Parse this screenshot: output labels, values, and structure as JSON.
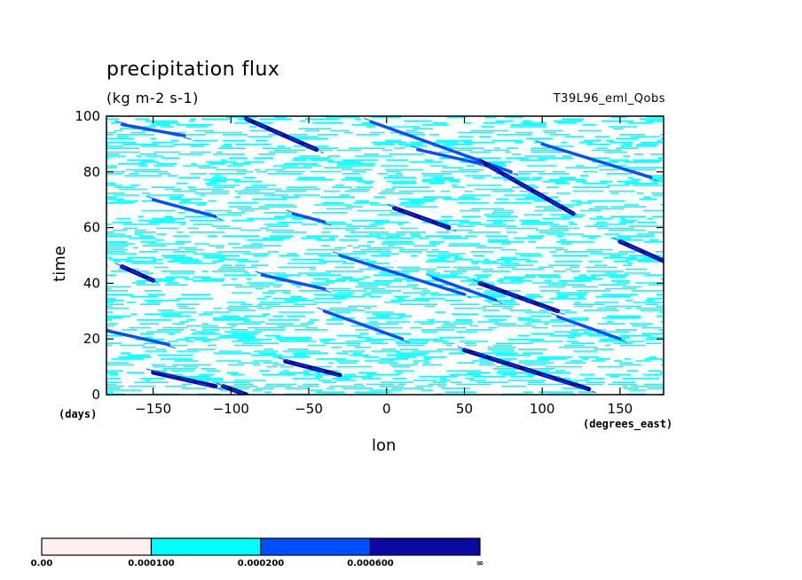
{
  "chart_data": {
    "type": "heatmap",
    "title": "precipitation flux",
    "units": "(kg m-2 s-1)",
    "run_label": "T39L96_eml_Qobs",
    "xlabel": "lon",
    "xunit": "(degrees_east)",
    "ylabel": "time",
    "yunit": "(days)",
    "xlim": [
      -180,
      178
    ],
    "ylim": [
      0,
      100
    ],
    "xticks": [
      -150,
      -100,
      -50,
      0,
      50,
      100,
      150
    ],
    "yticks": [
      0,
      20,
      40,
      60,
      80,
      100
    ],
    "colorbar": {
      "levels": [
        "0.00",
        "0.000100",
        "0.000200",
        "0.000600",
        "∞"
      ],
      "colors": [
        "#fff0f0",
        "#00ffff",
        "#0050ff",
        "#0a0aa0"
      ]
    },
    "bands": [
      {
        "x0": -170,
        "t0": 97,
        "x1": -130,
        "t1": 93,
        "level": 2
      },
      {
        "x0": -90,
        "t0": 99,
        "x1": -45,
        "t1": 88,
        "level": 3
      },
      {
        "x0": -10,
        "t0": 98,
        "x1": 80,
        "t1": 80,
        "level": 2
      },
      {
        "x0": 60,
        "t0": 84,
        "x1": 120,
        "t1": 65,
        "level": 3
      },
      {
        "x0": 20,
        "t0": 88,
        "x1": 60,
        "t1": 83,
        "level": 2
      },
      {
        "x0": 100,
        "t0": 90,
        "x1": 170,
        "t1": 78,
        "level": 2
      },
      {
        "x0": -150,
        "t0": 70,
        "x1": -110,
        "t1": 64,
        "level": 2
      },
      {
        "x0": 5,
        "t0": 67,
        "x1": 40,
        "t1": 60,
        "level": 3
      },
      {
        "x0": -60,
        "t0": 65,
        "x1": -40,
        "t1": 62,
        "level": 2
      },
      {
        "x0": 150,
        "t0": 55,
        "x1": 178,
        "t1": 48,
        "level": 3
      },
      {
        "x0": -170,
        "t0": 46,
        "x1": -150,
        "t1": 41,
        "level": 3
      },
      {
        "x0": -30,
        "t0": 50,
        "x1": 50,
        "t1": 36,
        "level": 2
      },
      {
        "x0": -80,
        "t0": 43,
        "x1": -40,
        "t1": 38,
        "level": 2
      },
      {
        "x0": 60,
        "t0": 40,
        "x1": 110,
        "t1": 30,
        "level": 3
      },
      {
        "x0": 30,
        "t0": 42,
        "x1": 70,
        "t1": 34,
        "level": 2
      },
      {
        "x0": -180,
        "t0": 23,
        "x1": -140,
        "t1": 18,
        "level": 2
      },
      {
        "x0": -40,
        "t0": 30,
        "x1": 10,
        "t1": 20,
        "level": 2
      },
      {
        "x0": -65,
        "t0": 12,
        "x1": -30,
        "t1": 7,
        "level": 3
      },
      {
        "x0": -150,
        "t0": 8,
        "x1": -110,
        "t1": 3,
        "level": 3
      },
      {
        "x0": -105,
        "t0": 3,
        "x1": -90,
        "t1": 0,
        "level": 3
      },
      {
        "x0": 50,
        "t0": 16,
        "x1": 130,
        "t1": 2,
        "level": 3
      },
      {
        "x0": 110,
        "t0": 28,
        "x1": 150,
        "t1": 20,
        "level": 2
      }
    ]
  }
}
